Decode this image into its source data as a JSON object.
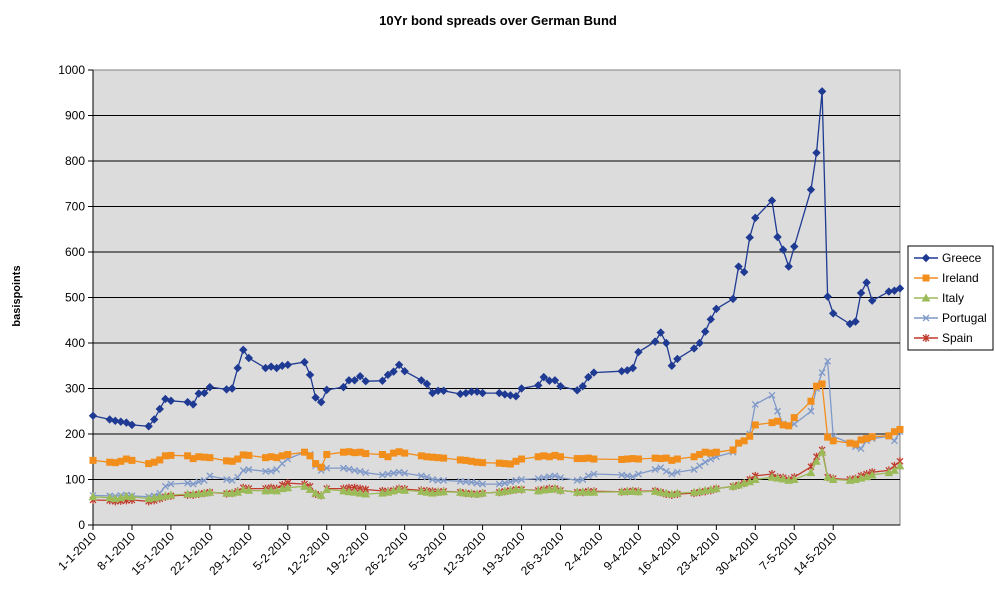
{
  "chart_data": {
    "type": "line",
    "title": "10Yr bond spreads over German Bund",
    "xlabel": "",
    "ylabel": "basispoints",
    "ylim": [
      0,
      1000
    ],
    "yticks": [
      0,
      100,
      200,
      300,
      400,
      500,
      600,
      700,
      800,
      900,
      1000
    ],
    "grid": "horizontal",
    "legend_position": "right",
    "x_tick_labels": [
      "1-1-2010",
      "8-1-2010",
      "15-1-2010",
      "22-1-2010",
      "29-1-2010",
      "5-2-2010",
      "12-2-2010",
      "19-2-2010",
      "26-2-2010",
      "5-3-2010",
      "12-3-2010",
      "19-3-2010",
      "26-3-2010",
      "2-4-2010",
      "9-4-2010",
      "16-4-2010",
      "23-4-2010",
      "30-4-2010",
      "7-5-2010",
      "14-5-2010"
    ],
    "x_start": "2010-01-01",
    "x_end": "2010-05-26",
    "x": [
      "2010-01-01",
      "2010-01-04",
      "2010-01-05",
      "2010-01-06",
      "2010-01-07",
      "2010-01-08",
      "2010-01-11",
      "2010-01-12",
      "2010-01-13",
      "2010-01-14",
      "2010-01-15",
      "2010-01-18",
      "2010-01-19",
      "2010-01-20",
      "2010-01-21",
      "2010-01-22",
      "2010-01-25",
      "2010-01-26",
      "2010-01-27",
      "2010-01-28",
      "2010-01-29",
      "2010-02-01",
      "2010-02-02",
      "2010-02-03",
      "2010-02-04",
      "2010-02-05",
      "2010-02-08",
      "2010-02-09",
      "2010-02-10",
      "2010-02-11",
      "2010-02-12",
      "2010-02-15",
      "2010-02-16",
      "2010-02-17",
      "2010-02-18",
      "2010-02-19",
      "2010-02-22",
      "2010-02-23",
      "2010-02-24",
      "2010-02-25",
      "2010-02-26",
      "2010-03-01",
      "2010-03-02",
      "2010-03-03",
      "2010-03-04",
      "2010-03-05",
      "2010-03-08",
      "2010-03-09",
      "2010-03-10",
      "2010-03-11",
      "2010-03-12",
      "2010-03-15",
      "2010-03-16",
      "2010-03-17",
      "2010-03-18",
      "2010-03-19",
      "2010-03-22",
      "2010-03-23",
      "2010-03-24",
      "2010-03-25",
      "2010-03-26",
      "2010-03-29",
      "2010-03-30",
      "2010-03-31",
      "2010-04-01",
      "2010-04-06",
      "2010-04-07",
      "2010-04-08",
      "2010-04-09",
      "2010-04-12",
      "2010-04-13",
      "2010-04-14",
      "2010-04-15",
      "2010-04-16",
      "2010-04-19",
      "2010-04-20",
      "2010-04-21",
      "2010-04-22",
      "2010-04-23",
      "2010-04-26",
      "2010-04-27",
      "2010-04-28",
      "2010-04-29",
      "2010-04-30",
      "2010-05-03",
      "2010-05-04",
      "2010-05-05",
      "2010-05-06",
      "2010-05-07",
      "2010-05-10",
      "2010-05-11",
      "2010-05-12",
      "2010-05-13",
      "2010-05-14",
      "2010-05-17",
      "2010-05-18",
      "2010-05-19",
      "2010-05-20",
      "2010-05-21",
      "2010-05-24",
      "2010-05-25",
      "2010-05-26"
    ],
    "series": [
      {
        "name": "Greece",
        "color": "#1f3a93",
        "marker": "diamond",
        "values": [
          240,
          232,
          229,
          227,
          225,
          220,
          217,
          232,
          255,
          277,
          273,
          270,
          265,
          289,
          290,
          303,
          298,
          300,
          345,
          385,
          367,
          345,
          348,
          345,
          350,
          352,
          358,
          330,
          280,
          270,
          297,
          303,
          318,
          318,
          327,
          316,
          317,
          330,
          337,
          352,
          338,
          318,
          310,
          290,
          295,
          295,
          288,
          290,
          293,
          293,
          290,
          290,
          287,
          285,
          283,
          300,
          307,
          325,
          317,
          318,
          305,
          296,
          305,
          325,
          335,
          338,
          340,
          345,
          380,
          403,
          423,
          400,
          350,
          365,
          388,
          400,
          425,
          452,
          475,
          497,
          568,
          556,
          632,
          675,
          713,
          633,
          605,
          568,
          612,
          737,
          818,
          953,
          502,
          465,
          442,
          447,
          510,
          533,
          493,
          513,
          515,
          520
        ]
      },
      {
        "name": "Ireland",
        "color": "#f28e1c",
        "marker": "square",
        "values": [
          142,
          138,
          137,
          140,
          145,
          142,
          135,
          138,
          143,
          152,
          153,
          152,
          146,
          150,
          149,
          148,
          141,
          140,
          145,
          154,
          153,
          148,
          150,
          148,
          152,
          155,
          160,
          152,
          135,
          127,
          155,
          160,
          161,
          159,
          160,
          157,
          155,
          150,
          158,
          161,
          158,
          152,
          150,
          149,
          148,
          147,
          143,
          142,
          140,
          138,
          137,
          136,
          135,
          134,
          140,
          145,
          150,
          152,
          150,
          153,
          150,
          146,
          146,
          147,
          145,
          144,
          145,
          146,
          145,
          147,
          146,
          147,
          142,
          145,
          150,
          155,
          160,
          158,
          160,
          165,
          180,
          185,
          195,
          220,
          225,
          228,
          220,
          218,
          236,
          272,
          305,
          310,
          193,
          185,
          180,
          178,
          187,
          190,
          194,
          196,
          205,
          210
        ]
      },
      {
        "name": "Italy",
        "color": "#9bbb59",
        "marker": "triangle",
        "values": [
          62,
          60,
          58,
          60,
          63,
          62,
          58,
          60,
          62,
          64,
          66,
          68,
          68,
          69,
          70,
          72,
          70,
          70,
          72,
          78,
          76,
          75,
          76,
          75,
          80,
          82,
          85,
          78,
          70,
          65,
          78,
          75,
          73,
          72,
          70,
          68,
          70,
          72,
          75,
          78,
          76,
          74,
          72,
          70,
          72,
          73,
          72,
          70,
          69,
          68,
          70,
          72,
          74,
          76,
          78,
          78,
          75,
          77,
          78,
          80,
          76,
          72,
          73,
          72,
          72,
          73,
          74,
          74,
          73,
          74,
          72,
          70,
          68,
          70,
          72,
          74,
          76,
          78,
          80,
          85,
          88,
          92,
          95,
          100,
          105,
          103,
          101,
          98,
          100,
          115,
          140,
          160,
          105,
          100,
          98,
          100,
          103,
          106,
          110,
          115,
          120,
          130
        ]
      },
      {
        "name": "Portugal",
        "color": "#7f99c9",
        "marker": "x",
        "values": [
          65,
          64,
          63,
          65,
          66,
          64,
          62,
          64,
          70,
          85,
          90,
          92,
          90,
          95,
          98,
          108,
          100,
          98,
          105,
          120,
          122,
          118,
          118,
          122,
          135,
          145,
          160,
          155,
          130,
          120,
          125,
          125,
          123,
          120,
          118,
          115,
          110,
          112,
          114,
          116,
          114,
          108,
          105,
          100,
          98,
          98,
          96,
          95,
          94,
          92,
          90,
          90,
          92,
          95,
          98,
          100,
          102,
          104,
          106,
          108,
          104,
          98,
          100,
          108,
          112,
          110,
          108,
          106,
          112,
          122,
          126,
          118,
          112,
          116,
          122,
          130,
          138,
          145,
          150,
          160,
          180,
          185,
          200,
          265,
          285,
          250,
          222,
          218,
          222,
          250,
          300,
          335,
          360,
          195,
          180,
          172,
          168,
          185,
          190,
          195,
          185,
          205
        ]
      },
      {
        "name": "Spain",
        "color": "#c0392b",
        "marker": "asterisk",
        "values": [
          55,
          54,
          52,
          53,
          54,
          55,
          52,
          54,
          58,
          62,
          64,
          66,
          66,
          68,
          70,
          72,
          69,
          70,
          74,
          82,
          80,
          80,
          82,
          80,
          88,
          92,
          90,
          85,
          68,
          65,
          80,
          80,
          82,
          82,
          80,
          78,
          75,
          74,
          76,
          80,
          79,
          76,
          75,
          74,
          73,
          74,
          72,
          70,
          69,
          68,
          70,
          72,
          74,
          76,
          78,
          78,
          76,
          78,
          80,
          80,
          76,
          72,
          72,
          74,
          74,
          73,
          74,
          75,
          74,
          75,
          72,
          68,
          66,
          68,
          70,
          72,
          74,
          76,
          80,
          85,
          88,
          92,
          100,
          108,
          112,
          105,
          104,
          100,
          105,
          128,
          150,
          165,
          105,
          102,
          100,
          102,
          108,
          112,
          116,
          120,
          130,
          140
        ]
      }
    ]
  }
}
